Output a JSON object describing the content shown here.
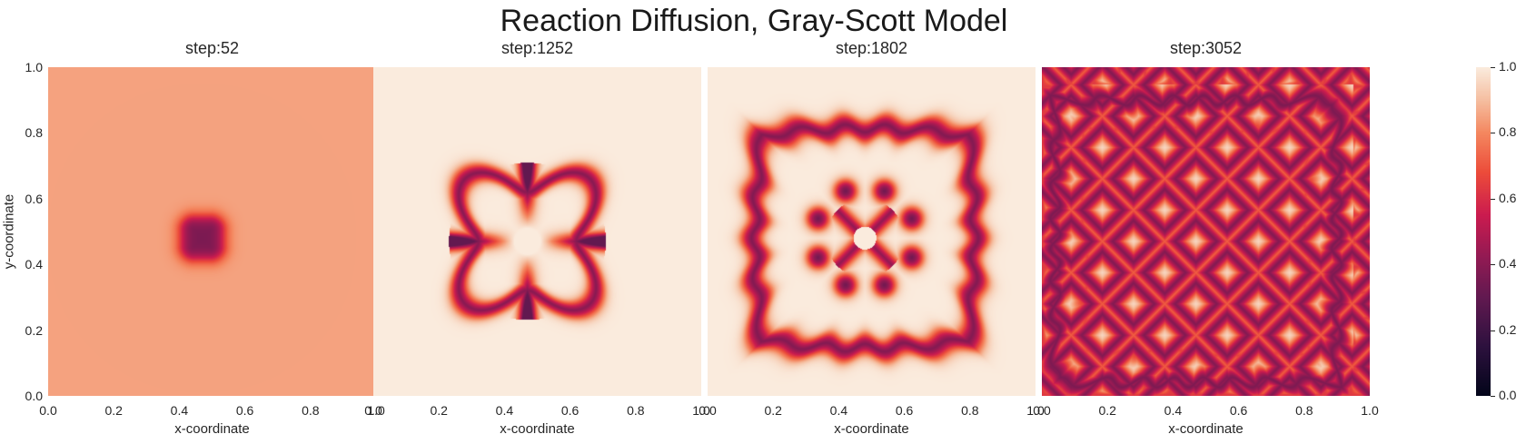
{
  "figure": {
    "title": "Reaction Diffusion, Gray-Scott Model"
  },
  "chart_data": [
    {
      "type": "heatmap",
      "title": "step:52",
      "xlabel": "x-coordinate",
      "ylabel": "y-coordinate",
      "xlim": [
        0.0,
        1.0
      ],
      "ylim": [
        0.0,
        1.0
      ],
      "xticks": [
        "0.0",
        "0.2",
        "0.4",
        "0.6",
        "0.8",
        "1.0"
      ],
      "yticks": [
        "0.0",
        "0.2",
        "0.4",
        "0.6",
        "0.8",
        "1.0"
      ],
      "pattern": "single-square-spot",
      "background_value": 0.85,
      "grid": false
    },
    {
      "type": "heatmap",
      "title": "step:1252",
      "xlabel": "x-coordinate",
      "ylabel": "",
      "xlim": [
        0.0,
        1.0
      ],
      "ylim": [
        0.0,
        1.0
      ],
      "xticks": [
        "0.0",
        "0.2",
        "0.4",
        "0.6",
        "0.8",
        "1.0"
      ],
      "yticks": [],
      "pattern": "four-petal-ring",
      "background_value": 1.0,
      "grid": false
    },
    {
      "type": "heatmap",
      "title": "step:1802",
      "xlabel": "x-coordinate",
      "ylabel": "",
      "xlim": [
        0.0,
        1.0
      ],
      "ylim": [
        0.0,
        1.0
      ],
      "xticks": [
        "0.0",
        "0.2",
        "0.4",
        "0.6",
        "0.8",
        "1.0"
      ],
      "yticks": [],
      "pattern": "wavy-square-ring-with-inner-flower",
      "background_value": 1.0,
      "grid": false
    },
    {
      "type": "heatmap",
      "title": "step:3052",
      "xlabel": "x-coordinate",
      "ylabel": "",
      "xlim": [
        0.0,
        1.0
      ],
      "ylim": [
        0.0,
        1.0
      ],
      "xticks": [
        "0.0",
        "0.2",
        "0.4",
        "0.6",
        "0.8",
        "1.0"
      ],
      "yticks": [],
      "pattern": "space-filling-labyrinth",
      "background_value": 1.0,
      "grid": false
    }
  ],
  "colorbar": {
    "colormap": "rocket",
    "vmin": 0.0,
    "vmax": 1.0,
    "ticks": [
      "0.0",
      "0.2",
      "0.4",
      "0.6",
      "0.8",
      "1.0"
    ]
  }
}
